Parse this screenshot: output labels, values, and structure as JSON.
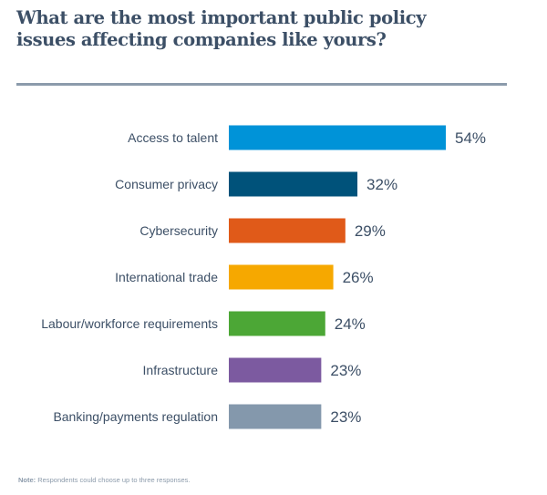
{
  "chart_data": {
    "type": "bar",
    "orientation": "horizontal",
    "title": "What are the most important public policy issues affecting companies like yours?",
    "xlabel": "",
    "ylabel": "",
    "grid": false,
    "legend": "none",
    "xlim": [
      0,
      54
    ],
    "value_suffix": "%",
    "categories": [
      "Access to talent",
      "Consumer privacy",
      "Cybersecurity",
      "International trade",
      "Labour/workforce requirements",
      "Infrastructure",
      "Banking/payments regulation"
    ],
    "values": [
      54,
      32,
      29,
      26,
      24,
      23,
      23
    ],
    "colors": [
      "#0093d8",
      "#00527a",
      "#e05a19",
      "#f6a800",
      "#4ca736",
      "#7c5aa0",
      "#8498ac"
    ],
    "note_label": "Note:",
    "note_text": "Respondents could choose up to three responses."
  }
}
